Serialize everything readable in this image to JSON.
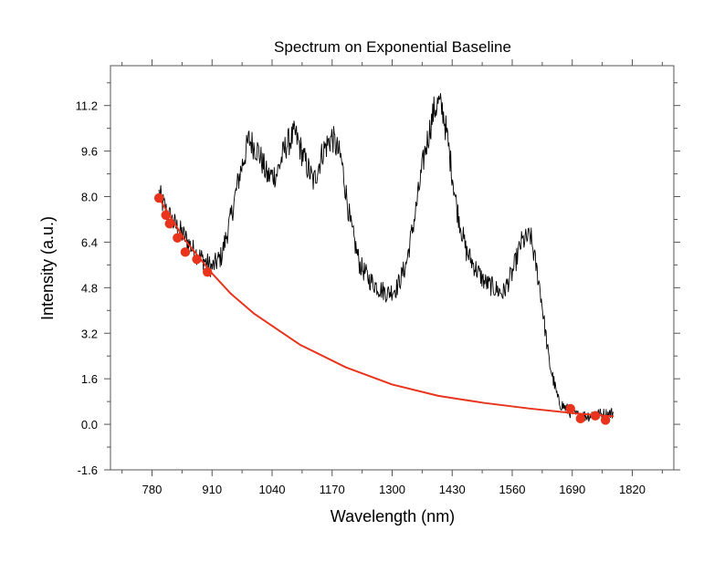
{
  "chart_data": {
    "type": "line",
    "title": "Spectrum on Exponential Baseline",
    "xlabel": "Wavelength (nm)",
    "ylabel": "Intensity (a.u.)",
    "xlim": [
      690,
      1910
    ],
    "ylim": [
      -1.6,
      12.6
    ],
    "x_ticks": [
      780,
      910,
      1040,
      1170,
      1300,
      1430,
      1560,
      1690,
      1820
    ],
    "y_ticks": [
      -1.6,
      0.0,
      1.6,
      3.2,
      4.8,
      6.4,
      8.0,
      9.6,
      11.2
    ],
    "y_tick_labels": [
      "-1.6",
      "0.0",
      "1.6",
      "3.2",
      "4.8",
      "6.4",
      "8.0",
      "9.6",
      "11.2"
    ],
    "grid": false,
    "colors": {
      "spectrum": "#000000",
      "baseline": "#e8341c",
      "points": "#e8341c",
      "axes": "#555555"
    },
    "series": [
      {
        "kind": "spectrum_outline",
        "x": [
          795,
          810,
          830,
          850,
          870,
          890,
          910,
          930,
          950,
          970,
          990,
          1010,
          1030,
          1050,
          1070,
          1090,
          1110,
          1130,
          1150,
          1170,
          1190,
          1210,
          1230,
          1250,
          1270,
          1290,
          1310,
          1330,
          1350,
          1370,
          1390,
          1400,
          1410,
          1420,
          1440,
          1460,
          1480,
          1500,
          1520,
          1540,
          1560,
          1580,
          1600,
          1620,
          1640,
          1660,
          1680,
          1700,
          1720,
          1740,
          1760,
          1780
        ],
        "values": [
          8.1,
          7.5,
          7.0,
          6.6,
          6.1,
          5.8,
          5.5,
          5.9,
          7.2,
          8.8,
          10.0,
          9.6,
          8.7,
          8.8,
          9.8,
          10.2,
          9.3,
          8.5,
          9.6,
          10.1,
          9.3,
          7.0,
          5.6,
          5.1,
          4.8,
          4.6,
          4.8,
          5.6,
          7.4,
          9.5,
          11.0,
          11.3,
          11.0,
          10.0,
          7.6,
          6.1,
          5.5,
          5.0,
          4.8,
          4.6,
          5.3,
          6.4,
          6.6,
          4.8,
          2.2,
          0.8,
          0.5,
          0.3,
          0.3,
          0.35,
          0.35,
          0.4
        ]
      },
      {
        "kind": "baseline_fit",
        "x": [
          795,
          850,
          910,
          950,
          1000,
          1100,
          1200,
          1300,
          1400,
          1500,
          1600,
          1700,
          1780
        ],
        "values": [
          7.95,
          6.5,
          5.3,
          4.6,
          3.9,
          2.8,
          2.0,
          1.4,
          1.0,
          0.75,
          0.55,
          0.38,
          0.28
        ]
      },
      {
        "kind": "anchor_points",
        "x": [
          795,
          810,
          818,
          835,
          852,
          877,
          900,
          1686,
          1708,
          1740,
          1762
        ],
        "values": [
          7.95,
          7.35,
          7.05,
          6.55,
          6.05,
          5.8,
          5.35,
          0.55,
          0.2,
          0.3,
          0.15
        ]
      }
    ]
  }
}
